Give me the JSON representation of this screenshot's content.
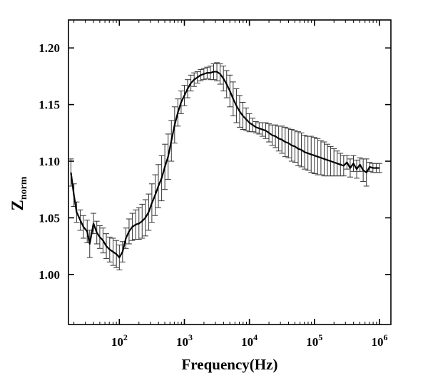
{
  "chart_data": {
    "type": "line",
    "title": "",
    "xlabel": "Frequency(Hz)",
    "ylabel": "Z",
    "ylabel_sub": "norm",
    "x_scale": "log",
    "xlim": [
      16.5,
      1500000
    ],
    "ylim": [
      0.9558,
      1.2247
    ],
    "x_ticks": [
      {
        "value": 100,
        "base": "10",
        "exp": "2"
      },
      {
        "value": 1000,
        "base": "10",
        "exp": "3"
      },
      {
        "value": 10000,
        "base": "10",
        "exp": "4"
      },
      {
        "value": 100000,
        "base": "10",
        "exp": "5"
      },
      {
        "value": 1000000,
        "base": "10",
        "exp": "6"
      }
    ],
    "y_ticks": [
      {
        "value": 1.0,
        "label": "1.00"
      },
      {
        "value": 1.05,
        "label": "1.05"
      },
      {
        "value": 1.1,
        "label": "1.10"
      },
      {
        "value": 1.15,
        "label": "1.15"
      },
      {
        "value": 1.2,
        "label": "1.20"
      }
    ],
    "grid": false,
    "legend": "none",
    "colors": {
      "line": "#000000",
      "error_bar": "#333333",
      "axis": "#000000"
    },
    "series": [
      {
        "x": [
          18,
          20,
          22,
          25,
          28,
          32,
          35,
          40,
          45,
          50,
          56,
          63,
          71,
          80,
          90,
          100,
          112,
          126,
          141,
          158,
          178,
          200,
          224,
          251,
          282,
          316,
          355,
          398,
          447,
          501,
          562,
          631,
          708,
          794,
          891,
          1000,
          1122,
          1259,
          1413,
          1585,
          1778,
          1995,
          2239,
          2512,
          2818,
          3162,
          3548,
          3981,
          4467,
          5012,
          5623,
          6310,
          7079,
          7943,
          8913,
          10000,
          11220,
          12589,
          14125,
          15849,
          17783,
          19953,
          22387,
          25119,
          28184,
          31623,
          35481,
          39811,
          44668,
          50119,
          56234,
          63096,
          70795,
          79433,
          89125,
          100000,
          112202,
          125893,
          141254,
          158489,
          177828,
          199526,
          223872,
          251189,
          281838,
          316228,
          354813,
          398107,
          446684,
          501187,
          562341,
          630957,
          707946,
          794328,
          891251,
          1000000
        ],
        "y": [
          1.09,
          1.07,
          1.055,
          1.048,
          1.042,
          1.038,
          1.027,
          1.045,
          1.037,
          1.033,
          1.03,
          1.025,
          1.022,
          1.02,
          1.018,
          1.015,
          1.02,
          1.032,
          1.038,
          1.042,
          1.044,
          1.045,
          1.047,
          1.05,
          1.055,
          1.063,
          1.07,
          1.078,
          1.085,
          1.095,
          1.104,
          1.118,
          1.132,
          1.143,
          1.152,
          1.158,
          1.164,
          1.169,
          1.172,
          1.174,
          1.176,
          1.177,
          1.178,
          1.178,
          1.179,
          1.179,
          1.177,
          1.173,
          1.168,
          1.162,
          1.155,
          1.149,
          1.144,
          1.14,
          1.137,
          1.134,
          1.132,
          1.13,
          1.129,
          1.128,
          1.127,
          1.125,
          1.123,
          1.122,
          1.12,
          1.119,
          1.117,
          1.116,
          1.114,
          1.113,
          1.111,
          1.11,
          1.108,
          1.107,
          1.106,
          1.105,
          1.104,
          1.103,
          1.102,
          1.101,
          1.1,
          1.099,
          1.098,
          1.097,
          1.096,
          1.099,
          1.094,
          1.098,
          1.093,
          1.097,
          1.092,
          1.09,
          1.095,
          1.094,
          1.094,
          1.094
        ],
        "err": [
          0.012,
          0.01,
          0.009,
          0.009,
          0.01,
          0.01,
          0.012,
          0.009,
          0.01,
          0.01,
          0.011,
          0.011,
          0.011,
          0.012,
          0.012,
          0.011,
          0.009,
          0.009,
          0.011,
          0.012,
          0.013,
          0.014,
          0.015,
          0.016,
          0.016,
          0.017,
          0.018,
          0.019,
          0.02,
          0.02,
          0.02,
          0.018,
          0.016,
          0.012,
          0.01,
          0.009,
          0.008,
          0.007,
          0.006,
          0.005,
          0.005,
          0.005,
          0.005,
          0.006,
          0.007,
          0.008,
          0.009,
          0.011,
          0.012,
          0.014,
          0.015,
          0.015,
          0.014,
          0.012,
          0.01,
          0.008,
          0.006,
          0.005,
          0.005,
          0.006,
          0.007,
          0.008,
          0.009,
          0.01,
          0.011,
          0.012,
          0.013,
          0.013,
          0.014,
          0.014,
          0.015,
          0.015,
          0.015,
          0.015,
          0.016,
          0.016,
          0.016,
          0.015,
          0.015,
          0.014,
          0.013,
          0.012,
          0.011,
          0.01,
          0.009,
          0.006,
          0.008,
          0.007,
          0.008,
          0.006,
          0.01,
          0.012,
          0.004,
          0.004,
          0.004,
          0.004
        ]
      }
    ]
  }
}
